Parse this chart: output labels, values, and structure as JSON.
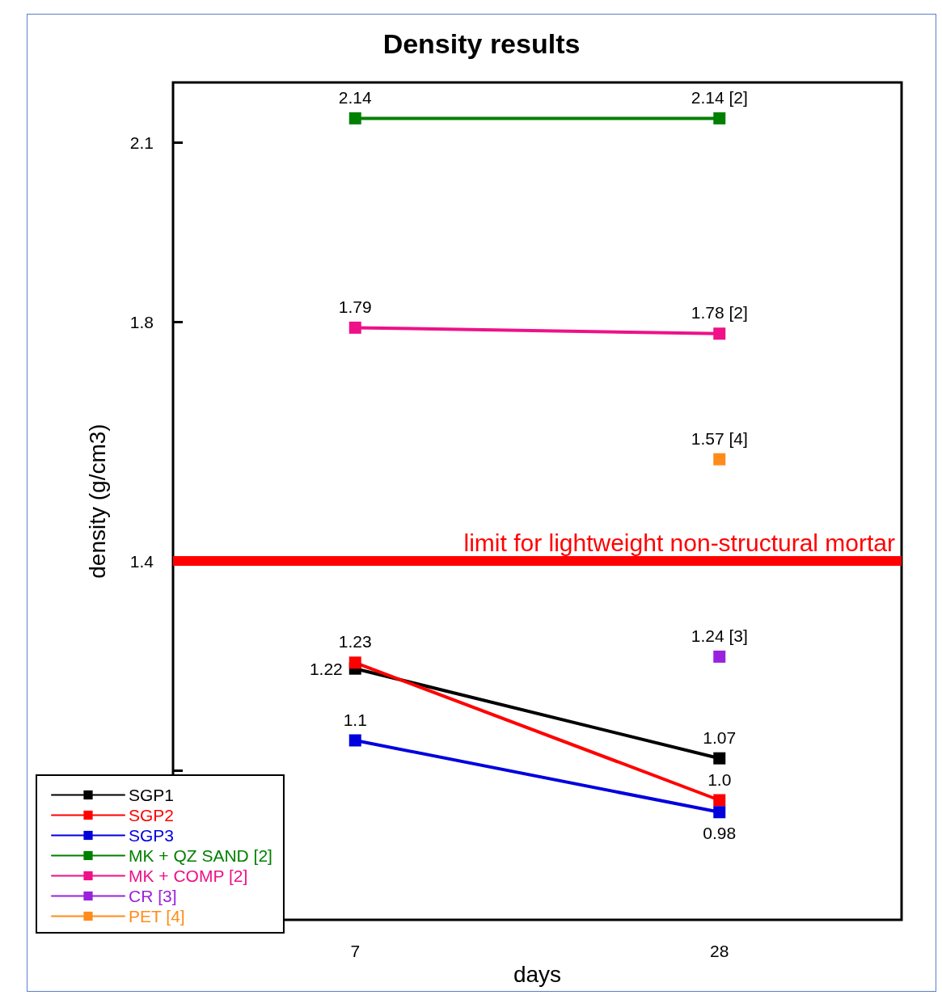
{
  "chart_data": {
    "type": "line",
    "title": "Density results",
    "xlabel": "days",
    "ylabel": "density (g/cm3)",
    "categories": [
      "7",
      "28"
    ],
    "ylim": [
      0.8,
      2.2
    ],
    "yticks": [
      2.1,
      1.8,
      1.4,
      {
        "value": 1.05,
        "label": null
      }
    ],
    "grid": false,
    "legend": "bottom left",
    "marker": "square",
    "line_style": "solid",
    "series": [
      {
        "name": "SGP1",
        "color": "#000000",
        "values": [
          1.22,
          1.07
        ],
        "value_labels": [
          "1.22",
          "1.07"
        ]
      },
      {
        "name": "SGP2",
        "color": "#ff0000",
        "values": [
          1.23,
          1.0
        ],
        "value_labels": [
          "1.23",
          "1.0"
        ]
      },
      {
        "name": "SGP3",
        "color": "#0000dd",
        "values": [
          1.1,
          0.98
        ],
        "value_labels": [
          "1.1",
          "0.98"
        ]
      },
      {
        "name": "MK + QZ SAND [2]",
        "color": "#008000",
        "values": [
          2.14,
          2.14
        ],
        "value_labels": [
          "2.14",
          "2.14 [2]"
        ]
      },
      {
        "name": "MK + COMP [2]",
        "color": "#ee1188",
        "values": [
          1.79,
          1.78
        ],
        "value_labels": [
          "1.79",
          "1.78 [2]"
        ]
      },
      {
        "name": "CR [3]",
        "color": "#9922dd",
        "values": [
          null,
          1.24
        ],
        "value_labels": [
          null,
          "1.24 [3]"
        ]
      },
      {
        "name": "PET [4]",
        "color": "#ff8c1a",
        "values": [
          null,
          1.57
        ],
        "value_labels": [
          null,
          "1.57 [4]"
        ]
      }
    ],
    "ref_lines": [
      {
        "axis": "y",
        "value": 1.4,
        "label": "limit for lightweight non-structural mortar",
        "color": "#ff0000"
      }
    ]
  }
}
